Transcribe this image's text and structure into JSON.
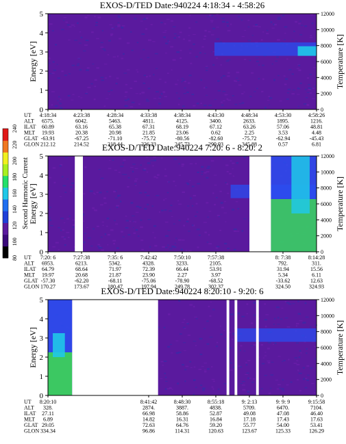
{
  "colors": {
    "background": "#ffffff",
    "spectrogram_base": "#5a1a9e",
    "spectrogram_speckle": "#3a2aa8",
    "band_blue": "#2a4ef0",
    "band_cyan": "#20c8e8",
    "band_green": "#40e840",
    "gap": "#ffffff"
  },
  "colorbar": {
    "label": "Second Harmonic Current",
    "ticks": [
      "80",
      "100",
      "120",
      "140",
      "160",
      "180",
      "200",
      "220",
      "240"
    ],
    "colors": [
      "#000000",
      "#3a0a7a",
      "#5a1a9e",
      "#1f3fd8",
      "#1f6ff0",
      "#1fc8e8",
      "#24e06a",
      "#a8f020",
      "#f0f020",
      "#f07820",
      "#e01818"
    ]
  },
  "chart_data": [
    {
      "type": "heatmap",
      "title": "EXOS-D/TED   Date:940224  4:18:34 - 4:58:26",
      "ylabel": "Energy [eV]",
      "y2label": "Temperature [K]",
      "ylim": [
        0,
        5
      ],
      "y2lim": [
        0,
        12000
      ],
      "yticks": [
        "0",
        "1",
        "2",
        "3",
        "4",
        "5"
      ],
      "y2ticks": [
        "0",
        "2000",
        "4000",
        "6000",
        "8000",
        "10000",
        "12000"
      ],
      "data_gaps": [],
      "blue_band_start": 0.62,
      "row_labels": [
        "UT",
        "ALT",
        "ILAT",
        "MLT",
        "GLAT",
        "GLON"
      ],
      "columns": [
        {
          "UT": "4:18:34",
          "ALT": "6575.",
          "ILAT": "60.89",
          "MLT": "19.93",
          "GLAT": "-63.91",
          "GLON": "212.12"
        },
        {
          "UT": "4:23:38",
          "ALT": "6042.",
          "ILAT": "63.16",
          "MLT": "20.38",
          "GLAT": "-67.25",
          "GLON": "214.52"
        },
        {
          "UT": "4:28:34",
          "ALT": "5463.",
          "ILAT": "65.38",
          "MLT": "20.98",
          "GLAT": "-71.10",
          "GLON": "218.44"
        },
        {
          "UT": "4:33:38",
          "ALT": "4811.",
          "ILAT": "67.31",
          "MLT": "21.85",
          "GLAT": "-75.72",
          "GLON": "226.33"
        },
        {
          "UT": "4:38:34",
          "ALT": "4125.",
          "ILAT": "68.19",
          "MLT": "23.06",
          "GLAT": "-80.56",
          "GLON": "245.73"
        },
        {
          "UT": "4:43:30",
          "ALT": "3400.",
          "ILAT": "67.12",
          "MLT": "0.62",
          "GLAT": "-82.60",
          "GLON": "299.93"
        },
        {
          "UT": "4:48:34",
          "ALT": "2633.",
          "ILAT": "63.26",
          "MLT": "2.25",
          "GLAT": "-75.72",
          "GLON": "345.88"
        },
        {
          "UT": "4:53:30",
          "ALT": "1895.",
          "ILAT": "57.06",
          "MLT": "3.53",
          "GLAT": "-62.94",
          "GLON": "0.57"
        },
        {
          "UT": "4:58:26",
          "ALT": "1216.",
          "ILAT": "48.81",
          "MLT": "4.48",
          "GLAT": "-45.43",
          "GLON": "6.81"
        }
      ]
    },
    {
      "type": "heatmap",
      "title": "EXOS-D/TED   Date:940224  7:20: 6 - 8:20: 2",
      "ylabel": "Energy [eV]",
      "y2label": "Temperature [K]",
      "ylim": [
        0,
        5
      ],
      "y2lim": [
        0,
        12000
      ],
      "yticks": [
        "0",
        "1",
        "2",
        "3",
        "4",
        "5"
      ],
      "y2ticks": [
        "0",
        "2000",
        "4000",
        "6000",
        "8000",
        "10000",
        "12000"
      ],
      "data_gaps": [
        [
          0.1,
          0.13
        ],
        [
          0.75,
          0.83
        ]
      ],
      "blue_band_start": 0.68,
      "row_labels": [
        "UT",
        "ALT",
        "ILAT",
        "MLT",
        "GLAT",
        "GLON"
      ],
      "columns": [
        {
          "UT": "7:20: 6",
          "ALT": "6953.",
          "ILAT": "64.79",
          "MLT": "19.97",
          "GLAT": "-57.30",
          "GLON": "170.27"
        },
        {
          "UT": "7:27:38",
          "ALT": "6213.",
          "ILAT": "68.64",
          "MLT": "20.68",
          "GLAT": "-62.20",
          "GLON": "173.67"
        },
        {
          "UT": "7:35: 6",
          "ALT": "5342.",
          "ILAT": "71.97",
          "MLT": "21.87",
          "GLAT": "-68.11",
          "GLON": "180.47"
        },
        {
          "UT": "7:42:42",
          "ALT": "4328.",
          "ILAT": "72.39",
          "MLT": "23.90",
          "GLAT": "-75.06",
          "GLON": "197.94"
        },
        {
          "UT": "7:50:10",
          "ALT": "3233.",
          "ILAT": "66.44",
          "MLT": "2.27",
          "GLAT": "-78.90",
          "GLON": "249.78"
        },
        {
          "UT": "7:57:38",
          "ALT": "2105.",
          "ILAT": "53.91",
          "MLT": "3.97",
          "GLAT": "-68.52",
          "GLON": "302.37"
        },
        {
          "UT": "",
          "ALT": "",
          "ILAT": "",
          "MLT": "",
          "GLAT": "",
          "GLON": ""
        },
        {
          "UT": "8: 7:38",
          "ALT": "792.",
          "ILAT": "31.94",
          "MLT": "5.34",
          "GLAT": "-33.62",
          "GLON": "324.50"
        },
        {
          "UT": "8:14:28",
          "ALT": "311.",
          "ILAT": "15.56",
          "MLT": "6.11",
          "GLAT": "12.63",
          "GLON": "324.93"
        }
      ]
    },
    {
      "type": "heatmap",
      "title": "EXOS-D/TED   Date:940224  8:20:10 - 9:20: 6",
      "ylabel": "Energy [eV]",
      "y2label": "Temperature [K]",
      "ylim": [
        0,
        5
      ],
      "y2lim": [
        0,
        12000
      ],
      "yticks": [
        "0",
        "1",
        "2",
        "3",
        "4",
        "5"
      ],
      "y2ticks": [
        "0",
        "2000",
        "4000",
        "6000",
        "8000",
        "10000",
        "12000"
      ],
      "data_gaps": [
        [
          0.09,
          0.41
        ],
        [
          0.665,
          0.675
        ],
        [
          0.695,
          0.705
        ],
        [
          0.775,
          0.785
        ]
      ],
      "blue_band_start": 0.7,
      "row_labels": [
        "UT",
        "ALT",
        "ILAT",
        "MLT",
        "GLAT",
        "GLON"
      ],
      "columns": [
        {
          "UT": "8:20:10",
          "ALT": "328.",
          "ILAT": "27.11",
          "MLT": "6.89",
          "GLAT": "29.05",
          "GLON": "334.34"
        },
        {
          "UT": "",
          "ALT": "",
          "ILAT": "",
          "MLT": "",
          "GLAT": "",
          "GLON": ""
        },
        {
          "UT": "",
          "ALT": "",
          "ILAT": "",
          "MLT": "",
          "GLAT": "",
          "GLON": ""
        },
        {
          "UT": "8:41:42",
          "ALT": "2874.",
          "ILAT": "66.98",
          "MLT": "14.82",
          "GLAT": "72.63",
          "GLON": "96.86"
        },
        {
          "UT": "8:48:30",
          "ALT": "3887.",
          "ILAT": "58.86",
          "MLT": "16.31",
          "GLAT": "64.76",
          "GLON": "114.31"
        },
        {
          "UT": "8:55:18",
          "ALT": "4838.",
          "ILAT": "52.87",
          "MLT": "16.84",
          "GLAT": "59.20",
          "GLON": "120.63"
        },
        {
          "UT": "9: 2:13",
          "ALT": "5709.",
          "ILAT": "49.08",
          "MLT": "17.18",
          "GLAT": "55.77",
          "GLON": "123.67"
        },
        {
          "UT": "9: 9: 9",
          "ALT": "6470.",
          "ILAT": "47.08",
          "MLT": "17.43",
          "GLAT": "54.00",
          "GLON": "125.33"
        },
        {
          "UT": "9:15:58",
          "ALT": "7104.",
          "ILAT": "46.40",
          "MLT": "17.63",
          "GLAT": "53.41",
          "GLON": "126.29"
        }
      ]
    }
  ]
}
